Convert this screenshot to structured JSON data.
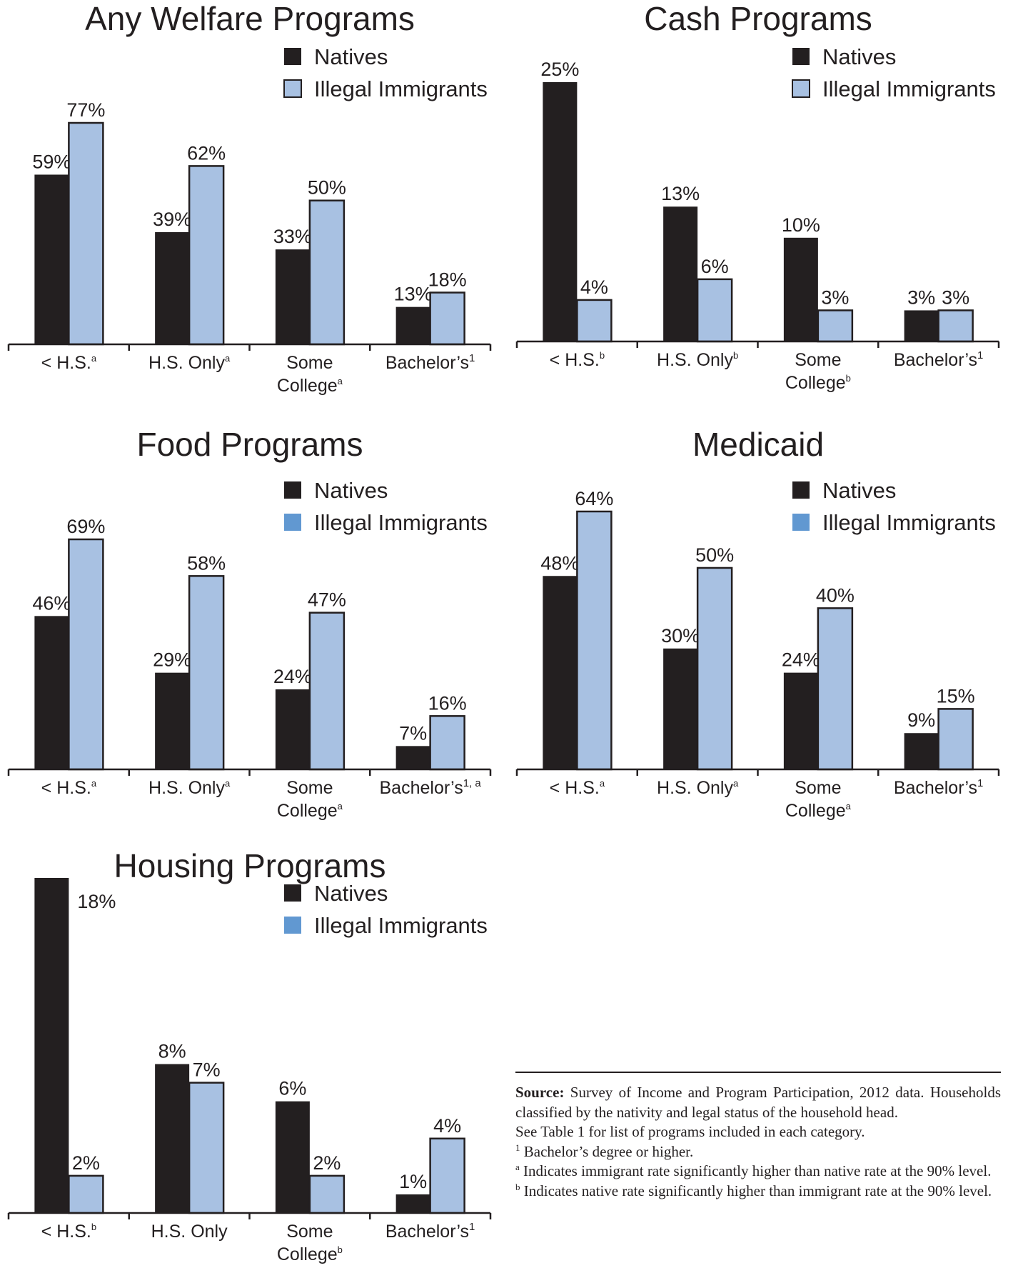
{
  "colors": {
    "natives": "#231f20",
    "illegal_immigrants": "#a8c1e2",
    "outline": "#231f20",
    "legend_swatch_dark_blue": "#6198d1"
  },
  "chart_data": [
    {
      "type": "bar",
      "title": "Any Welfare Programs",
      "categories": [
        {
          "label": "< H.S.",
          "line2": "",
          "sup": "a"
        },
        {
          "label": "H.S. Only",
          "line2": "",
          "sup": "a"
        },
        {
          "label": "Some",
          "line2": "College",
          "sup": "a"
        },
        {
          "label": "Bachelor’s",
          "line2": "",
          "sup": "1"
        }
      ],
      "series": [
        {
          "name": "Natives",
          "values": [
            59,
            39,
            33,
            13
          ],
          "labels": [
            "59%",
            "39%",
            "33%",
            "13%"
          ]
        },
        {
          "name": "Illegal Immigrants",
          "values": [
            77,
            62,
            50,
            18
          ],
          "labels": [
            "77%",
            "62%",
            "50%",
            "18%"
          ]
        }
      ],
      "ylim": [
        0,
        77
      ],
      "grid": false,
      "legend_position": "top-right",
      "immigrant_swatch_color": "#a8c1e2"
    },
    {
      "type": "bar",
      "title": "Cash Programs",
      "categories": [
        {
          "label": "< H.S.",
          "line2": "",
          "sup": "b"
        },
        {
          "label": "H.S. Only",
          "line2": "",
          "sup": "b"
        },
        {
          "label": "Some",
          "line2": "College",
          "sup": "b"
        },
        {
          "label": "Bachelor’s",
          "line2": "",
          "sup": "1"
        }
      ],
      "series": [
        {
          "name": "Natives",
          "values": [
            25,
            13,
            10,
            3
          ],
          "labels": [
            "25%",
            "13%",
            "10%",
            "3%"
          ]
        },
        {
          "name": "Illegal Immigrants",
          "values": [
            4,
            6,
            3,
            3
          ],
          "labels": [
            "4%",
            "6%",
            "3%",
            "3%"
          ]
        }
      ],
      "ylim": [
        0,
        25
      ],
      "grid": false,
      "legend_position": "top-right",
      "immigrant_swatch_color": "#a8c1e2"
    },
    {
      "type": "bar",
      "title": "Food Programs",
      "categories": [
        {
          "label": "< H.S.",
          "line2": "",
          "sup": "a"
        },
        {
          "label": "H.S. Only",
          "line2": "",
          "sup": "a"
        },
        {
          "label": "Some",
          "line2": "College",
          "sup": "a"
        },
        {
          "label": "Bachelor’s",
          "line2": "",
          "sup": "1, a"
        }
      ],
      "series": [
        {
          "name": "Natives",
          "values": [
            46,
            29,
            24,
            7
          ],
          "labels": [
            "46%",
            "29%",
            "24%",
            "7%"
          ]
        },
        {
          "name": "Illegal Immigrants",
          "values": [
            69,
            58,
            47,
            16
          ],
          "labels": [
            "69%",
            "58%",
            "47%",
            "16%"
          ]
        }
      ],
      "ylim": [
        0,
        69
      ],
      "grid": false,
      "legend_position": "top-right",
      "immigrant_swatch_color": "#6198d1"
    },
    {
      "type": "bar",
      "title": "Medicaid",
      "categories": [
        {
          "label": "< H.S.",
          "line2": "",
          "sup": "a"
        },
        {
          "label": "H.S. Only",
          "line2": "",
          "sup": "a"
        },
        {
          "label": "Some",
          "line2": "College",
          "sup": "a"
        },
        {
          "label": "Bachelor’s",
          "line2": "",
          "sup": "1"
        }
      ],
      "series": [
        {
          "name": "Natives",
          "values": [
            48,
            30,
            24,
            9
          ],
          "labels": [
            "48%",
            "30%",
            "24%",
            "9%"
          ]
        },
        {
          "name": "Illegal Immigrants",
          "values": [
            64,
            50,
            40,
            15
          ],
          "labels": [
            "64%",
            "50%",
            "40%",
            "15%"
          ]
        }
      ],
      "ylim": [
        0,
        64
      ],
      "grid": false,
      "legend_position": "top-right",
      "immigrant_swatch_color": "#6198d1"
    },
    {
      "type": "bar",
      "title": "Housing Programs",
      "categories": [
        {
          "label": "< H.S.",
          "line2": "",
          "sup": "b"
        },
        {
          "label": "H.S. Only",
          "line2": "",
          "sup": ""
        },
        {
          "label": "Some",
          "line2": "College",
          "sup": "b"
        },
        {
          "label": "Bachelor’s",
          "line2": "",
          "sup": "1"
        }
      ],
      "series": [
        {
          "name": "Natives",
          "values": [
            18,
            8,
            6,
            1
          ],
          "labels": [
            "18%",
            "8%",
            "6%",
            "1%"
          ]
        },
        {
          "name": "Illegal Immigrants",
          "values": [
            2,
            7,
            2,
            4
          ],
          "labels": [
            "2%",
            "7%",
            "2%",
            "4%"
          ]
        }
      ],
      "ylim": [
        0,
        18
      ],
      "grid": false,
      "legend_position": "top-right",
      "immigrant_swatch_color": "#6198d1"
    }
  ],
  "source_note": {
    "lead": "Source:",
    "text": " Survey of Income and Program Participation, 2012 data. Households classified by the nativity and legal status of the household head.",
    "line2": "See Table 1 for list of programs included in each category.",
    "notes": [
      {
        "mark": "1",
        "text": " Bachelor’s degree or higher."
      },
      {
        "mark": "a",
        "text": " Indicates immigrant rate significantly higher than native rate at the 90% level."
      },
      {
        "mark": "b",
        "text": " Indicates native rate significantly higher than immigrant rate at the 90% level."
      }
    ]
  }
}
